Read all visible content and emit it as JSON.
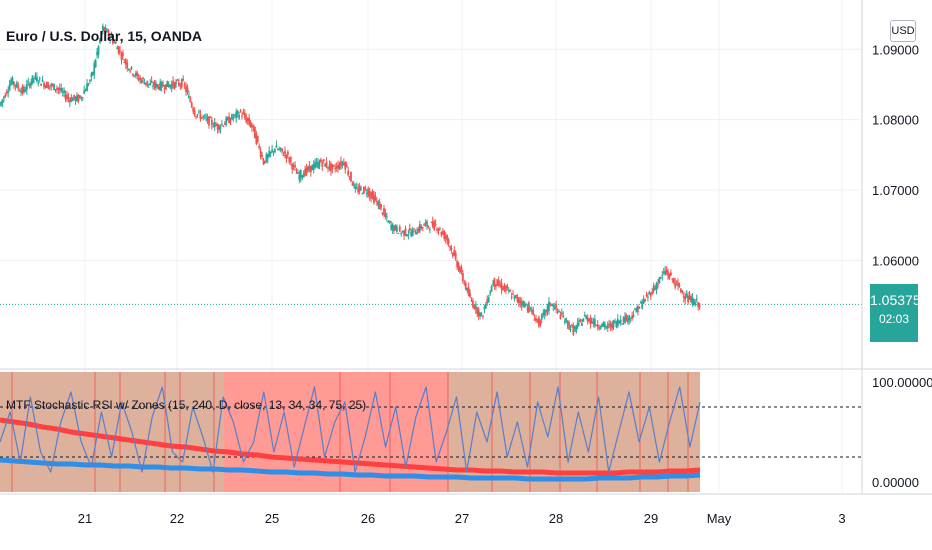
{
  "header": {
    "symbol_title": "Euro / U.S. Dollar, 15, OANDA",
    "currency_button": "USD"
  },
  "last_price": {
    "value": "1.05375",
    "countdown": "02:03",
    "color": "#26a69a"
  },
  "colors": {
    "grid": "#eef0f4",
    "up": "#26a69a",
    "down": "#ef5350",
    "stoch_k": "#5b7ec9",
    "stoch_htf": "#2e8fe8",
    "stoch_d": "#ff4040",
    "zone_bear": "#ff8f88",
    "zone_mixed": "#d9a891"
  },
  "indicator": {
    "label": "MTF Stochastic RSI w/ Zones (15, 240, D, close, 13, 34, 34, 75, 25)"
  },
  "chart_data": [
    {
      "type": "line",
      "name": "price",
      "x_ticks": [
        "21",
        "22",
        "25",
        "26",
        "27",
        "28",
        "29",
        "May",
        "3"
      ],
      "y_ticks": [
        "1.09000",
        "1.08000",
        "1.07000",
        "1.06000"
      ],
      "ylim": [
        1.045,
        1.097
      ],
      "current_price": 1.05375,
      "grid": true,
      "series": [
        {
          "values": [
            1.082,
            1.0855,
            1.084,
            1.086,
            1.085,
            1.0845,
            1.083,
            1.083,
            1.086,
            1.093,
            1.091,
            1.088,
            1.086,
            1.085,
            1.0848,
            1.085,
            1.0852,
            1.081,
            1.08,
            1.079,
            1.08,
            1.081,
            1.079,
            1.074,
            1.076,
            1.075,
            1.072,
            1.073,
            1.074,
            1.073,
            1.074,
            1.07,
            1.07,
            1.068,
            1.065,
            1.064,
            1.064,
            1.065,
            1.065,
            1.063,
            1.059,
            1.0545,
            1.052,
            1.057,
            1.056,
            1.0545,
            1.0535,
            1.051,
            1.054,
            1.052,
            1.05,
            1.052,
            1.051,
            1.0505,
            1.0515,
            1.052,
            1.054,
            1.056,
            1.0585,
            1.0565,
            1.0545,
            1.0538
          ]
        }
      ]
    },
    {
      "type": "line",
      "name": "stochastic_rsi",
      "y_ticks": [
        "100.00000",
        "0.00000"
      ],
      "ylim": [
        -10,
        110
      ],
      "levels": [
        75,
        25
      ],
      "zones": [
        {
          "from_x": 0,
          "to_x": 0.32,
          "kind": "mixed"
        },
        {
          "from_x": 0.32,
          "to_x": 0.64,
          "kind": "bear"
        },
        {
          "from_x": 0.64,
          "to_x": 1,
          "kind": "mixed"
        }
      ],
      "series": [
        {
          "values": [
            40,
            70,
            20,
            85,
            30,
            10,
            60,
            90,
            40,
            15,
            70,
            25,
            80,
            50,
            10,
            65,
            95,
            30,
            20,
            75,
            45,
            10,
            85,
            60,
            20,
            40,
            90,
            30,
            70,
            15,
            55,
            95,
            25,
            60,
            80,
            10,
            45,
            90,
            35,
            75,
            15,
            65,
            95,
            20,
            50,
            85,
            10,
            70,
            40,
            90,
            25,
            60,
            15,
            80,
            45,
            95,
            20,
            70,
            30,
            85,
            10,
            50,
            90,
            40,
            75,
            20,
            60,
            95,
            35,
            80
          ]
        },
        {
          "values": [
            22,
            21,
            20,
            19,
            18,
            18,
            17,
            17,
            16,
            16,
            15,
            15,
            14,
            14,
            13,
            13,
            12,
            12,
            11,
            10,
            10,
            9,
            9,
            8,
            8,
            7,
            7,
            6,
            6,
            6,
            5,
            5,
            5,
            4,
            4,
            4,
            4,
            3,
            3,
            3,
            3,
            3,
            4,
            4,
            4,
            5,
            5,
            6,
            6,
            7
          ]
        },
        {
          "values": [
            62,
            60,
            58,
            55,
            53,
            50,
            48,
            46,
            44,
            42,
            40,
            38,
            36,
            35,
            33,
            31,
            30,
            28,
            27,
            25,
            24,
            23,
            22,
            21,
            20,
            19,
            18,
            17,
            16,
            15,
            14,
            13,
            12,
            12,
            11,
            11,
            10,
            10,
            10,
            9,
            9,
            9,
            9,
            9,
            10,
            10,
            10,
            11,
            11,
            12
          ]
        }
      ]
    }
  ]
}
